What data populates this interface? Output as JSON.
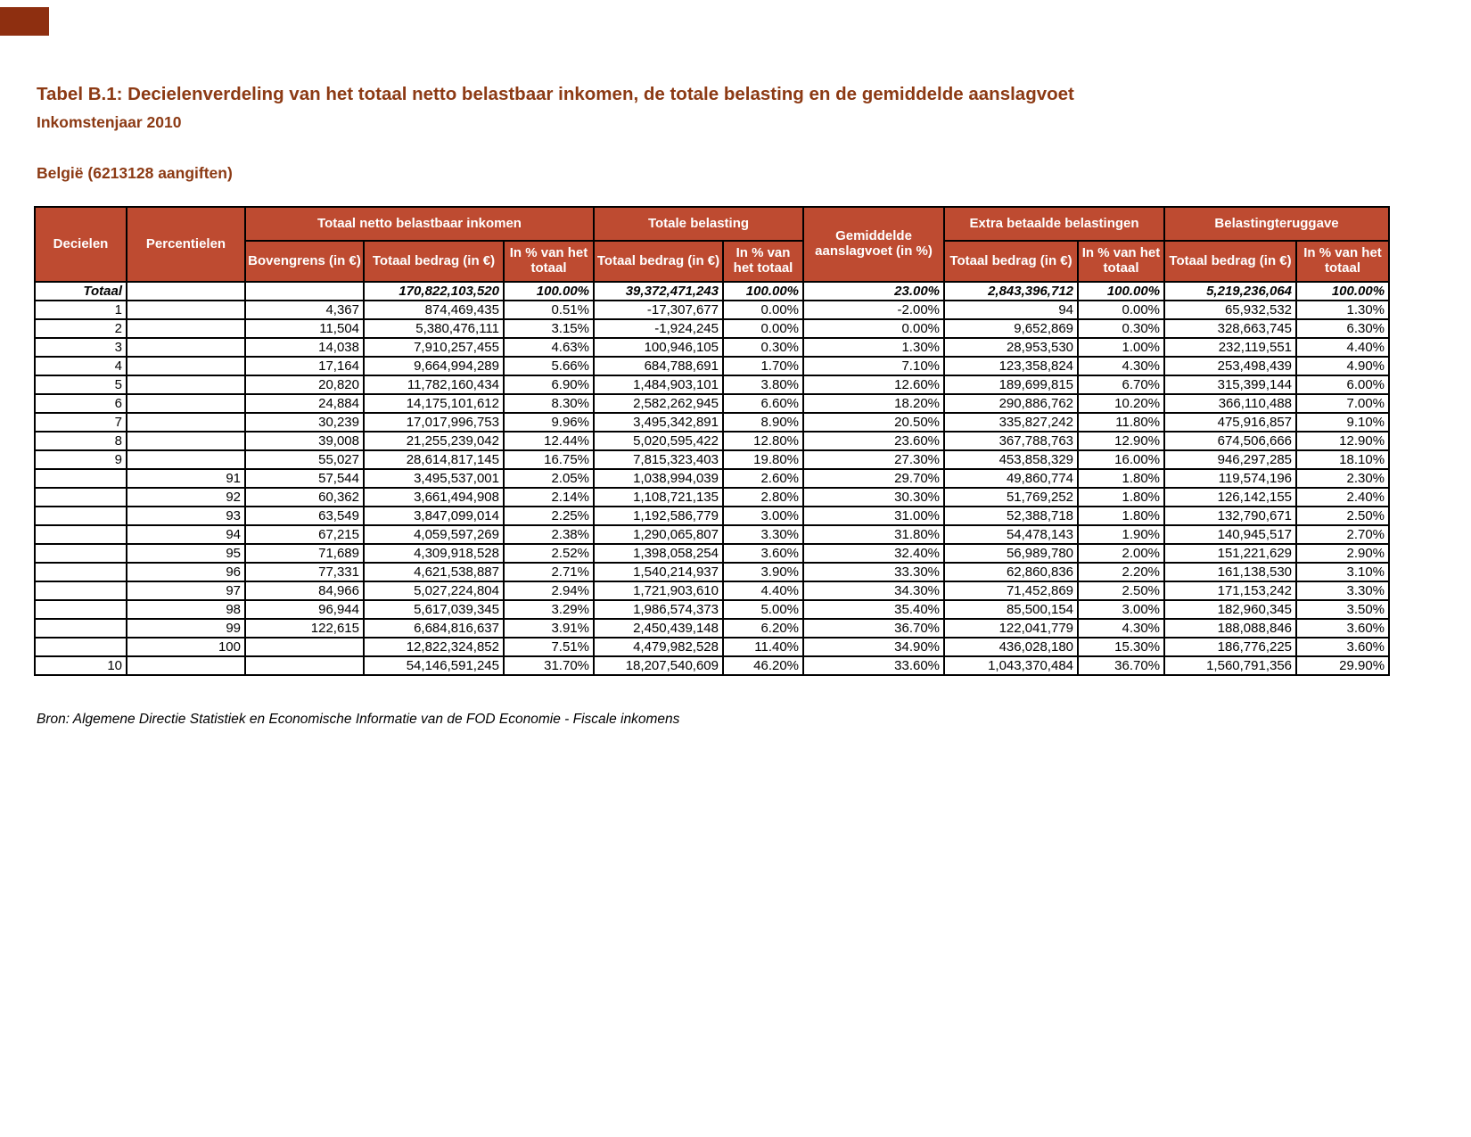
{
  "page": {
    "title": "Tabel B.1: Decielenverdeling van het totaal netto belastbaar inkomen, de totale belasting en de gemiddelde aanslagvoet",
    "subtitle": "Inkomstenjaar 2010",
    "region_line": "België (6213128 aangiften)",
    "source": "Bron: Algemene Directie Statistiek en Economische Informatie van de FOD Economie - Fiscale inkomens"
  },
  "colors": {
    "header_bg": "#be4b31",
    "heading_text": "#8c3a14",
    "corner_mark": "#8e2f10",
    "border": "#000000"
  },
  "table": {
    "header": {
      "decielen": "Decielen",
      "percentielen": "Percentielen",
      "group_inkomen": "Totaal netto belastbaar inkomen",
      "group_belasting": "Totale belasting",
      "gemiddelde": "Gemiddelde aanslagvoet (in %)",
      "group_extra": "Extra betaalde belastingen",
      "group_teruggave": "Belastingteruggave",
      "sub_bovengrens": "Bovengrens (in €)",
      "sub_bedrag": "Totaal bedrag (in €)",
      "sub_pct": "In % van het totaal"
    },
    "totals_row_index": 0,
    "rows": [
      [
        "Totaal",
        "",
        "",
        "170,822,103,520",
        "100.00%",
        "39,372,471,243",
        "100.00%",
        "23.00%",
        "2,843,396,712",
        "100.00%",
        "5,219,236,064",
        "100.00%"
      ],
      [
        "1",
        "",
        "4,367",
        "874,469,435",
        "0.51%",
        "-17,307,677",
        "0.00%",
        "-2.00%",
        "94",
        "0.00%",
        "65,932,532",
        "1.30%"
      ],
      [
        "2",
        "",
        "11,504",
        "5,380,476,111",
        "3.15%",
        "-1,924,245",
        "0.00%",
        "0.00%",
        "9,652,869",
        "0.30%",
        "328,663,745",
        "6.30%"
      ],
      [
        "3",
        "",
        "14,038",
        "7,910,257,455",
        "4.63%",
        "100,946,105",
        "0.30%",
        "1.30%",
        "28,953,530",
        "1.00%",
        "232,119,551",
        "4.40%"
      ],
      [
        "4",
        "",
        "17,164",
        "9,664,994,289",
        "5.66%",
        "684,788,691",
        "1.70%",
        "7.10%",
        "123,358,824",
        "4.30%",
        "253,498,439",
        "4.90%"
      ],
      [
        "5",
        "",
        "20,820",
        "11,782,160,434",
        "6.90%",
        "1,484,903,101",
        "3.80%",
        "12.60%",
        "189,699,815",
        "6.70%",
        "315,399,144",
        "6.00%"
      ],
      [
        "6",
        "",
        "24,884",
        "14,175,101,612",
        "8.30%",
        "2,582,262,945",
        "6.60%",
        "18.20%",
        "290,886,762",
        "10.20%",
        "366,110,488",
        "7.00%"
      ],
      [
        "7",
        "",
        "30,239",
        "17,017,996,753",
        "9.96%",
        "3,495,342,891",
        "8.90%",
        "20.50%",
        "335,827,242",
        "11.80%",
        "475,916,857",
        "9.10%"
      ],
      [
        "8",
        "",
        "39,008",
        "21,255,239,042",
        "12.44%",
        "5,020,595,422",
        "12.80%",
        "23.60%",
        "367,788,763",
        "12.90%",
        "674,506,666",
        "12.90%"
      ],
      [
        "9",
        "",
        "55,027",
        "28,614,817,145",
        "16.75%",
        "7,815,323,403",
        "19.80%",
        "27.30%",
        "453,858,329",
        "16.00%",
        "946,297,285",
        "18.10%"
      ],
      [
        "",
        "91",
        "57,544",
        "3,495,537,001",
        "2.05%",
        "1,038,994,039",
        "2.60%",
        "29.70%",
        "49,860,774",
        "1.80%",
        "119,574,196",
        "2.30%"
      ],
      [
        "",
        "92",
        "60,362",
        "3,661,494,908",
        "2.14%",
        "1,108,721,135",
        "2.80%",
        "30.30%",
        "51,769,252",
        "1.80%",
        "126,142,155",
        "2.40%"
      ],
      [
        "",
        "93",
        "63,549",
        "3,847,099,014",
        "2.25%",
        "1,192,586,779",
        "3.00%",
        "31.00%",
        "52,388,718",
        "1.80%",
        "132,790,671",
        "2.50%"
      ],
      [
        "",
        "94",
        "67,215",
        "4,059,597,269",
        "2.38%",
        "1,290,065,807",
        "3.30%",
        "31.80%",
        "54,478,143",
        "1.90%",
        "140,945,517",
        "2.70%"
      ],
      [
        "",
        "95",
        "71,689",
        "4,309,918,528",
        "2.52%",
        "1,398,058,254",
        "3.60%",
        "32.40%",
        "56,989,780",
        "2.00%",
        "151,221,629",
        "2.90%"
      ],
      [
        "",
        "96",
        "77,331",
        "4,621,538,887",
        "2.71%",
        "1,540,214,937",
        "3.90%",
        "33.30%",
        "62,860,836",
        "2.20%",
        "161,138,530",
        "3.10%"
      ],
      [
        "",
        "97",
        "84,966",
        "5,027,224,804",
        "2.94%",
        "1,721,903,610",
        "4.40%",
        "34.30%",
        "71,452,869",
        "2.50%",
        "171,153,242",
        "3.30%"
      ],
      [
        "",
        "98",
        "96,944",
        "5,617,039,345",
        "3.29%",
        "1,986,574,373",
        "5.00%",
        "35.40%",
        "85,500,154",
        "3.00%",
        "182,960,345",
        "3.50%"
      ],
      [
        "",
        "99",
        "122,615",
        "6,684,816,637",
        "3.91%",
        "2,450,439,148",
        "6.20%",
        "36.70%",
        "122,041,779",
        "4.30%",
        "188,088,846",
        "3.60%"
      ],
      [
        "",
        "100",
        "",
        "12,822,324,852",
        "7.51%",
        "4,479,982,528",
        "11.40%",
        "34.90%",
        "436,028,180",
        "15.30%",
        "186,776,225",
        "3.60%"
      ],
      [
        "10",
        "",
        "",
        "54,146,591,245",
        "31.70%",
        "18,207,540,609",
        "46.20%",
        "33.60%",
        "1,043,370,484",
        "36.70%",
        "1,560,791,356",
        "29.90%"
      ]
    ]
  }
}
